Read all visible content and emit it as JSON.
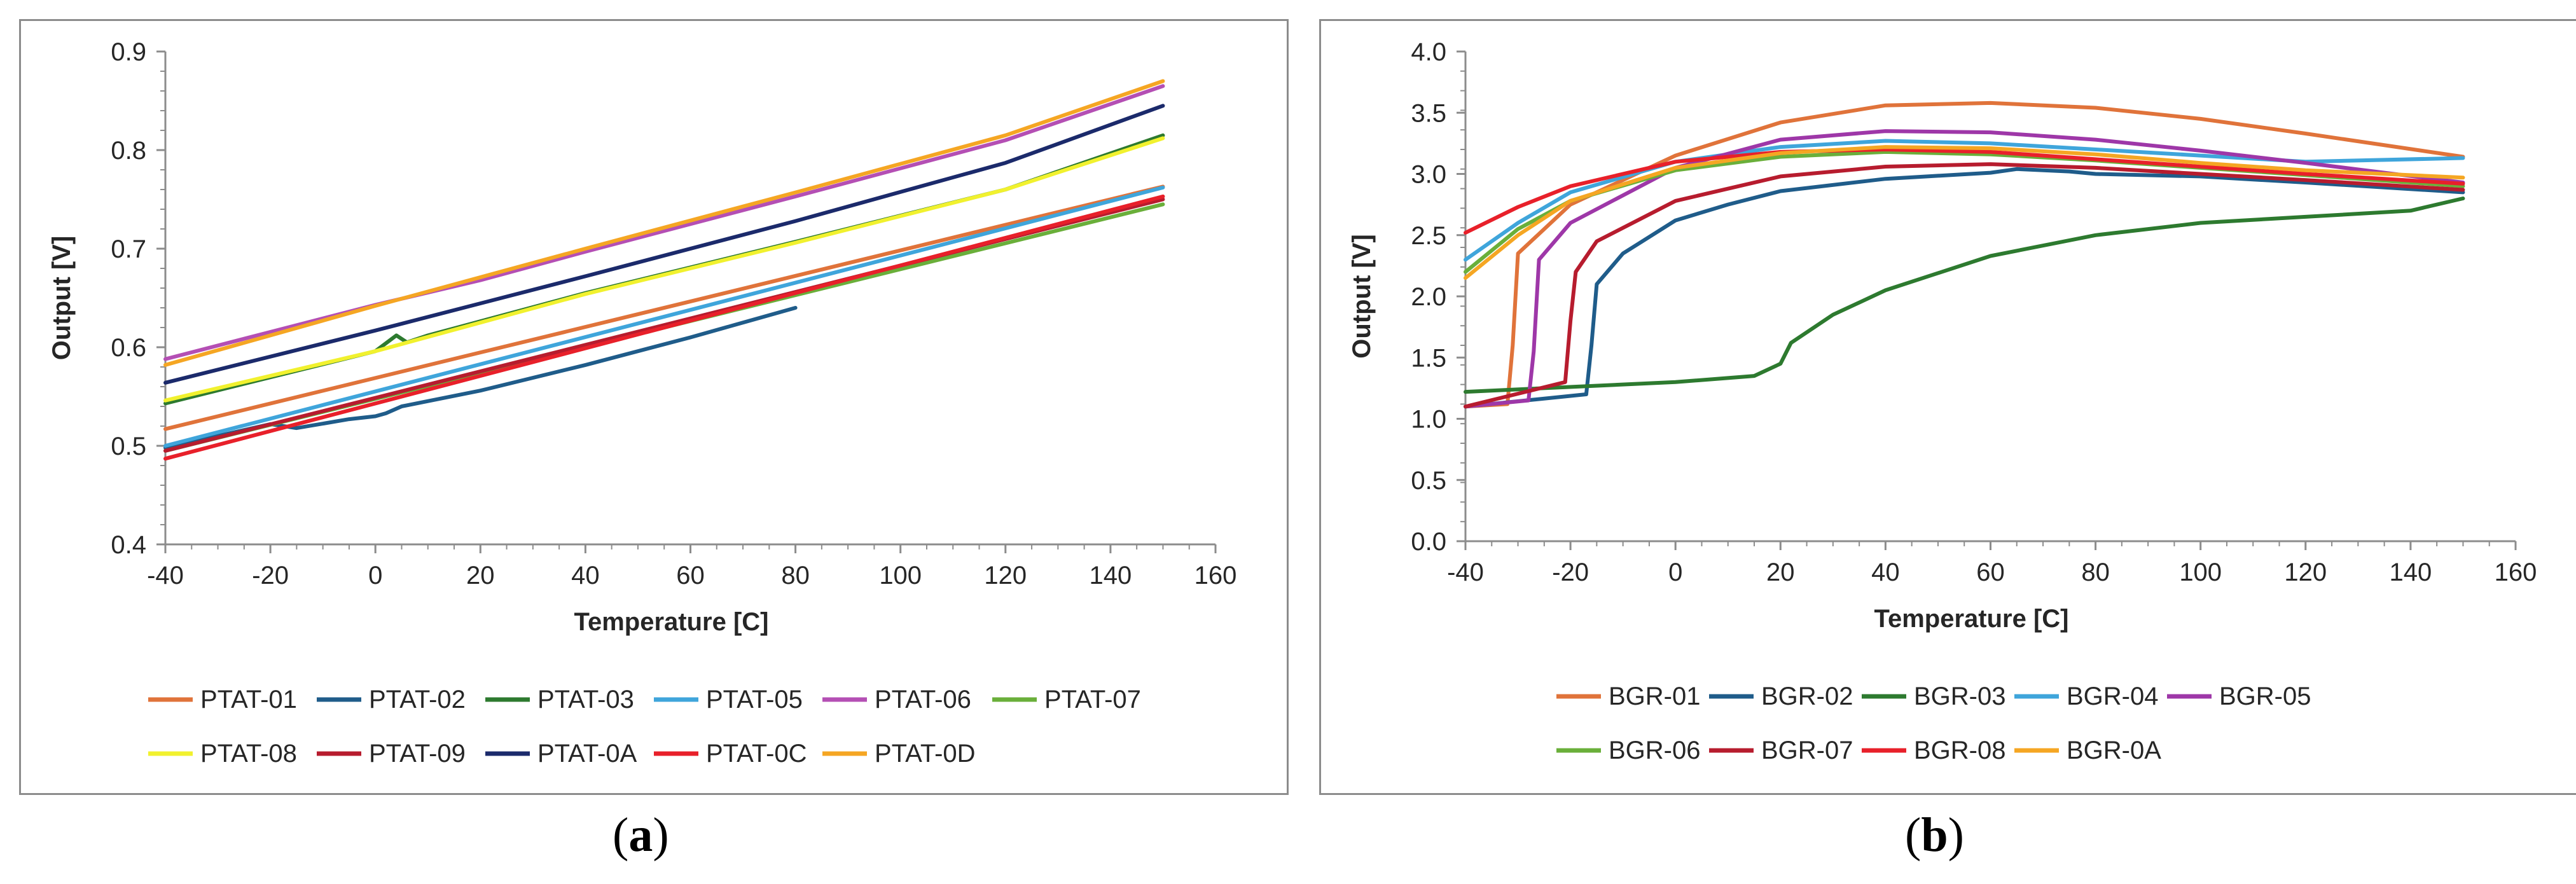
{
  "chart_data": [
    {
      "type": "line",
      "panel": "a",
      "xlabel": "Temperature [C]",
      "ylabel": "Output [V]",
      "xlim": [
        -40,
        160
      ],
      "ylim": [
        0.4,
        0.9
      ],
      "xticks": [
        -40,
        -20,
        0,
        20,
        40,
        60,
        80,
        100,
        120,
        140,
        160
      ],
      "yticks": [
        0.4,
        0.5,
        0.6,
        0.7,
        0.8,
        0.9
      ],
      "xtick_labels": [
        "-40",
        "-20",
        "0",
        "20",
        "40",
        "60",
        "80",
        "100",
        "120",
        "140",
        "160"
      ],
      "ytick_labels": [
        "0.4",
        "0.5",
        "0.6",
        "0.7",
        "0.8",
        "0.9"
      ],
      "legend_position": "bottom",
      "series": [
        {
          "name": "PTAT-01",
          "color": "#E0733A",
          "x": [
            -40,
            150
          ],
          "y": [
            0.517,
            0.763
          ]
        },
        {
          "name": "PTAT-02",
          "color": "#1F5C8A",
          "x": [
            -40,
            -20,
            -15,
            -5,
            0,
            2,
            5,
            20,
            40,
            60,
            80
          ],
          "y": [
            0.498,
            0.522,
            0.518,
            0.527,
            0.53,
            0.533,
            0.54,
            0.556,
            0.582,
            0.61,
            0.64
          ]
        },
        {
          "name": "PTAT-03",
          "color": "#2D7A2F",
          "x": [
            -40,
            0,
            4,
            6,
            10,
            40,
            80,
            120,
            150
          ],
          "y": [
            0.543,
            0.596,
            0.612,
            0.605,
            0.612,
            0.655,
            0.707,
            0.76,
            0.815
          ]
        },
        {
          "name": "PTAT-05",
          "color": "#3FA5DB",
          "x": [
            -40,
            150
          ],
          "y": [
            0.5,
            0.762
          ]
        },
        {
          "name": "PTAT-06",
          "color": "#B44FB4",
          "x": [
            -40,
            0,
            20,
            40,
            80,
            120,
            150
          ],
          "y": [
            0.588,
            0.643,
            0.668,
            0.697,
            0.753,
            0.81,
            0.865
          ]
        },
        {
          "name": "PTAT-07",
          "color": "#6AAF3A",
          "x": [
            -40,
            150
          ],
          "y": [
            0.495,
            0.745
          ]
        },
        {
          "name": "PTAT-08",
          "color": "#F1F12E",
          "x": [
            -40,
            0,
            40,
            80,
            120,
            150
          ],
          "y": [
            0.546,
            0.596,
            0.654,
            0.706,
            0.76,
            0.812
          ]
        },
        {
          "name": "PTAT-09",
          "color": "#B71C2E",
          "x": [
            -40,
            150
          ],
          "y": [
            0.495,
            0.75
          ]
        },
        {
          "name": "PTAT-0A",
          "color": "#1B2A6B",
          "x": [
            -40,
            0,
            40,
            80,
            120,
            150
          ],
          "y": [
            0.564,
            0.617,
            0.672,
            0.728,
            0.787,
            0.845
          ]
        },
        {
          "name": "PTAT-0C",
          "color": "#E8202A",
          "x": [
            -40,
            150
          ],
          "y": [
            0.487,
            0.753
          ]
        },
        {
          "name": "PTAT-0D",
          "color": "#F5A623",
          "x": [
            -40,
            0,
            40,
            80,
            120,
            150
          ],
          "y": [
            0.582,
            0.642,
            0.7,
            0.757,
            0.815,
            0.87
          ]
        }
      ]
    },
    {
      "type": "line",
      "panel": "b",
      "xlabel": "Temperature [C]",
      "ylabel": "Output [V]",
      "xlim": [
        -40,
        160
      ],
      "ylim": [
        0.0,
        4.0
      ],
      "xticks": [
        -40,
        -20,
        0,
        20,
        40,
        60,
        80,
        100,
        120,
        140,
        160
      ],
      "yticks": [
        0.0,
        0.5,
        1.0,
        1.5,
        2.0,
        2.5,
        3.0,
        3.5,
        4.0
      ],
      "xtick_labels": [
        "-40",
        "-20",
        "0",
        "20",
        "40",
        "60",
        "80",
        "100",
        "120",
        "140",
        "160"
      ],
      "ytick_labels": [
        "0.0",
        "0.5",
        "1.0",
        "1.5",
        "2.0",
        "2.5",
        "3.0",
        "3.5",
        "4.0"
      ],
      "legend_position": "bottom",
      "series": [
        {
          "name": "BGR-01",
          "color": "#E0733A",
          "x": [
            -40,
            -32,
            -31,
            -30,
            -20,
            0,
            20,
            40,
            60,
            80,
            100,
            120,
            150
          ],
          "y": [
            1.1,
            1.12,
            1.6,
            2.35,
            2.75,
            3.15,
            3.42,
            3.56,
            3.58,
            3.54,
            3.45,
            3.33,
            3.14
          ]
        },
        {
          "name": "BGR-02",
          "color": "#1F5C8A",
          "x": [
            -40,
            -17,
            -16,
            -15,
            -10,
            0,
            10,
            20,
            40,
            60,
            65,
            75,
            80,
            100,
            120,
            150
          ],
          "y": [
            1.1,
            1.2,
            1.6,
            2.1,
            2.35,
            2.62,
            2.75,
            2.86,
            2.96,
            3.01,
            3.04,
            3.02,
            3.0,
            2.98,
            2.93,
            2.85
          ]
        },
        {
          "name": "BGR-03",
          "color": "#2D7A2F",
          "x": [
            -40,
            0,
            15,
            20,
            22,
            30,
            40,
            60,
            80,
            100,
            120,
            140,
            150
          ],
          "y": [
            1.22,
            1.3,
            1.35,
            1.45,
            1.62,
            1.85,
            2.05,
            2.33,
            2.5,
            2.6,
            2.65,
            2.7,
            2.8
          ]
        },
        {
          "name": "BGR-04",
          "color": "#3FA5DB",
          "x": [
            -40,
            -30,
            -20,
            0,
            20,
            40,
            60,
            80,
            100,
            120,
            150
          ],
          "y": [
            2.3,
            2.6,
            2.85,
            3.1,
            3.22,
            3.27,
            3.25,
            3.2,
            3.15,
            3.1,
            3.13
          ]
        },
        {
          "name": "BGR-05",
          "color": "#9E37A8",
          "x": [
            -40,
            -28,
            -27,
            -26,
            -20,
            0,
            20,
            40,
            60,
            80,
            100,
            120,
            150
          ],
          "y": [
            1.1,
            1.15,
            1.55,
            2.3,
            2.6,
            3.05,
            3.28,
            3.35,
            3.34,
            3.28,
            3.19,
            3.09,
            2.93
          ]
        },
        {
          "name": "BGR-06",
          "color": "#6AAF3A",
          "x": [
            -40,
            -30,
            -20,
            0,
            20,
            40,
            60,
            80,
            100,
            120,
            150
          ],
          "y": [
            2.2,
            2.55,
            2.78,
            3.03,
            3.14,
            3.18,
            3.16,
            3.11,
            3.05,
            2.99,
            2.9
          ]
        },
        {
          "name": "BGR-07",
          "color": "#B71C2E",
          "x": [
            -40,
            -21,
            -20,
            -19,
            -15,
            0,
            20,
            40,
            60,
            80,
            100,
            120,
            150
          ],
          "y": [
            1.1,
            1.3,
            1.8,
            2.2,
            2.45,
            2.78,
            2.98,
            3.06,
            3.08,
            3.05,
            3.0,
            2.95,
            2.87
          ]
        },
        {
          "name": "BGR-08",
          "color": "#E8202A",
          "x": [
            -40,
            -30,
            -20,
            0,
            20,
            40,
            60,
            80,
            100,
            120,
            150
          ],
          "y": [
            2.52,
            2.73,
            2.9,
            3.1,
            3.18,
            3.2,
            3.18,
            3.12,
            3.06,
            3.0,
            2.92
          ]
        },
        {
          "name": "BGR-0A",
          "color": "#F5A623",
          "x": [
            -40,
            -30,
            -20,
            0,
            20,
            40,
            60,
            80,
            100,
            120,
            150
          ],
          "y": [
            2.15,
            2.5,
            2.78,
            3.05,
            3.17,
            3.22,
            3.21,
            3.16,
            3.09,
            3.03,
            2.97
          ]
        }
      ]
    }
  ],
  "captions": {
    "a": "a",
    "b": "b"
  }
}
